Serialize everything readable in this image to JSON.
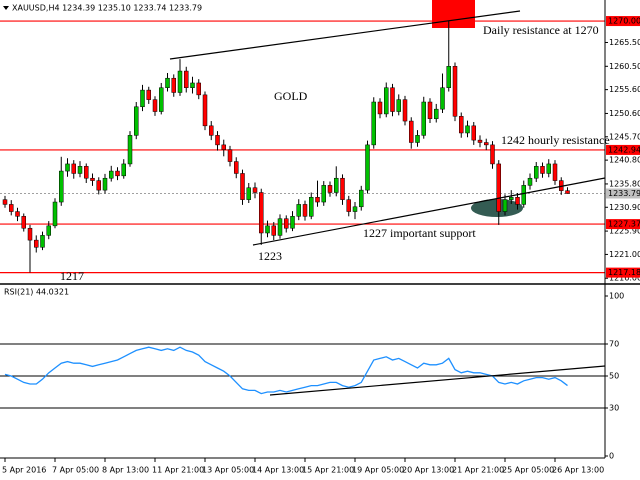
{
  "chart_data": [
    {
      "type": "candlestick",
      "title": "XAUUSD,H4  1234.39 1235.10 1233.74 1233.79",
      "categories": [
        "5 Apr 2016",
        null,
        null,
        null,
        null,
        null,
        null,
        null,
        "7 Apr 05:00",
        null,
        null,
        null,
        null,
        null,
        null,
        null,
        "8 Apr 13:00",
        null,
        null,
        null,
        null,
        null,
        null,
        null,
        "11 Apr 21:00",
        null,
        null,
        null,
        null,
        null,
        null,
        null,
        "13 Apr 05:00",
        null,
        null,
        null,
        null,
        null,
        null,
        null,
        "14 Apr 13:00",
        null,
        null,
        null,
        null,
        null,
        null,
        null,
        "15 Apr 21:00",
        null,
        null,
        null,
        null,
        null,
        null,
        null,
        "19 Apr 05:00",
        null,
        null,
        null,
        null,
        null,
        null,
        null,
        "20 Apr 13:00",
        null,
        null,
        null,
        null,
        null,
        null,
        null,
        "21 Apr 21:00",
        null,
        null,
        null,
        null,
        null,
        null,
        null,
        "25 Apr 05:00",
        null,
        null,
        null,
        null,
        null,
        null,
        null,
        "26 Apr 13:00",
        null,
        null
      ],
      "open": [
        1232.5,
        1231.5,
        1230.0,
        1229.0,
        1226.5,
        1224.0,
        1222.5,
        1225.0,
        1227.0,
        1232.0,
        1238.5,
        1240.0,
        1238.0,
        1239.5,
        1237.0,
        1236.5,
        1234.5,
        1237.0,
        1238.5,
        1237.5,
        1240.0,
        1246.0,
        1252.0,
        1255.5,
        1253.5,
        1251.0,
        1256.0,
        1258.0,
        1255.0,
        1259.5,
        1256.0,
        1257.0,
        1254.5,
        1248.0,
        1246.0,
        1244.0,
        1243.0,
        1240.5,
        1238.0,
        1232.5,
        1235.0,
        1234.0,
        1225.5,
        1227.0,
        1225.0,
        1228.5,
        1226.5,
        1229.0,
        1231.5,
        1229.0,
        1233.0,
        1232.0,
        1235.5,
        1234.0,
        1237.0,
        1232.5,
        1230.0,
        1231.0,
        1234.5,
        1244.0,
        1253.0,
        1250.5,
        1256.0,
        1251.0,
        1253.5,
        1249.0,
        1244.5,
        1246.0,
        1253.0,
        1249.5,
        1251.5,
        1256.0,
        1260.5,
        1250.0,
        1246.5,
        1248.0,
        1245.0,
        1244.5,
        1244.0,
        1240.0,
        1230.0,
        1232.5,
        1233.0,
        1231.5,
        1235.5,
        1237.0,
        1239.5,
        1238.0,
        1240.0,
        1236.5,
        1234.39
      ],
      "high": [
        1233.3,
        1232.4,
        1230.8,
        1229.6,
        1227.2,
        1225.0,
        1225.8,
        1228.0,
        1232.8,
        1241.5,
        1241.2,
        1240.8,
        1240.6,
        1240.1,
        1238.0,
        1237.2,
        1237.9,
        1239.6,
        1239.3,
        1241.0,
        1246.9,
        1253.0,
        1256.6,
        1256.2,
        1254.2,
        1257.0,
        1259.1,
        1258.8,
        1262.0,
        1260.4,
        1258.3,
        1257.8,
        1255.2,
        1249.0,
        1246.9,
        1245.1,
        1243.8,
        1241.4,
        1238.8,
        1236.0,
        1236.1,
        1234.8,
        1228.1,
        1227.8,
        1229.4,
        1229.2,
        1230.1,
        1232.6,
        1232.3,
        1234.0,
        1236.5,
        1236.4,
        1236.3,
        1239.5,
        1237.8,
        1233.3,
        1232.0,
        1235.4,
        1244.9,
        1254.0,
        1253.8,
        1257.1,
        1256.8,
        1254.6,
        1254.3,
        1249.8,
        1247.1,
        1254.1,
        1253.8,
        1252.6,
        1259.0,
        1270.0,
        1261.3,
        1250.8,
        1249.1,
        1248.8,
        1246.0,
        1245.3,
        1244.8,
        1240.8,
        1233.6,
        1234.5,
        1233.9,
        1236.5,
        1238.0,
        1240.4,
        1240.3,
        1241.0,
        1240.8,
        1237.2,
        1235.1
      ],
      "low": [
        1230.8,
        1229.2,
        1228.0,
        1225.8,
        1217.2,
        1221.4,
        1221.9,
        1224.2,
        1226.5,
        1231.2,
        1237.3,
        1236.9,
        1237.2,
        1236.0,
        1235.4,
        1233.6,
        1233.8,
        1236.3,
        1236.6,
        1236.9,
        1239.4,
        1245.2,
        1251.1,
        1252.6,
        1250.1,
        1250.4,
        1255.2,
        1254.1,
        1254.3,
        1255.0,
        1254.8,
        1253.6,
        1247.1,
        1245.0,
        1242.8,
        1241.6,
        1239.5,
        1237.0,
        1231.4,
        1231.8,
        1232.8,
        1223.0,
        1224.6,
        1224.0,
        1224.3,
        1225.6,
        1225.9,
        1228.2,
        1228.1,
        1228.4,
        1231.0,
        1231.2,
        1233.1,
        1233.2,
        1231.4,
        1229.0,
        1228.4,
        1230.2,
        1233.8,
        1243.2,
        1249.6,
        1249.8,
        1250.0,
        1250.2,
        1248.1,
        1243.2,
        1243.6,
        1245.3,
        1248.6,
        1248.7,
        1250.7,
        1255.2,
        1249.0,
        1245.5,
        1245.6,
        1244.0,
        1243.5,
        1242.9,
        1239.0,
        1227.2,
        1229.2,
        1231.6,
        1230.4,
        1230.8,
        1234.6,
        1236.2,
        1237.1,
        1237.2,
        1235.6,
        1233.5,
        1233.74
      ],
      "close": [
        1231.5,
        1230.0,
        1229.0,
        1226.5,
        1224.0,
        1222.5,
        1225.0,
        1227.0,
        1232.0,
        1238.5,
        1240.0,
        1238.0,
        1239.5,
        1237.0,
        1236.5,
        1234.5,
        1237.0,
        1238.5,
        1237.5,
        1240.0,
        1246.0,
        1252.0,
        1255.5,
        1253.5,
        1251.0,
        1256.0,
        1258.0,
        1255.0,
        1259.5,
        1256.0,
        1257.0,
        1254.5,
        1248.0,
        1246.0,
        1244.0,
        1243.0,
        1240.5,
        1238.0,
        1232.5,
        1235.0,
        1234.0,
        1225.5,
        1227.0,
        1225.0,
        1228.5,
        1226.5,
        1229.0,
        1231.5,
        1229.0,
        1233.0,
        1232.0,
        1235.5,
        1234.0,
        1237.0,
        1232.5,
        1230.0,
        1231.0,
        1234.5,
        1244.0,
        1253.0,
        1250.5,
        1256.0,
        1251.0,
        1253.5,
        1249.0,
        1244.5,
        1246.0,
        1253.0,
        1249.5,
        1251.5,
        1256.0,
        1260.5,
        1250.0,
        1246.5,
        1248.0,
        1245.0,
        1244.5,
        1244.0,
        1240.0,
        1230.0,
        1232.5,
        1233.0,
        1231.5,
        1235.5,
        1237.0,
        1239.5,
        1238.0,
        1240.0,
        1236.5,
        1234.39,
        1233.79
      ],
      "up_color": "#00c000",
      "down_color": "#ff0000",
      "level_color": "#ff0000",
      "ylim": [
        1215,
        1274
      ],
      "yticks": [
        {
          "value": 1216,
          "label": "1216.00"
        },
        {
          "value": 1221,
          "label": "1221.00"
        },
        {
          "value": 1225.9,
          "label": "1225.90"
        },
        {
          "value": 1230.9,
          "label": "1230.90"
        },
        {
          "value": 1235.8,
          "label": "1235.80"
        },
        {
          "value": 1240.8,
          "label": "1240.80"
        },
        {
          "value": 1245.7,
          "label": "1245.70"
        },
        {
          "value": 1250.6,
          "label": "1250.60"
        },
        {
          "value": 1255.6,
          "label": "1255.60"
        },
        {
          "value": 1260.5,
          "label": "1260.50"
        },
        {
          "value": 1265.5,
          "label": "1265.50"
        }
      ],
      "levels": [
        {
          "value": 1270,
          "label": "1270.00"
        },
        {
          "value": 1242.94,
          "label": "1242.94"
        },
        {
          "value": 1227.37,
          "label": "1227.37"
        },
        {
          "value": 1217.18,
          "label": "1217.18"
        }
      ],
      "current_price": 1233.79,
      "annotations": [
        {
          "text": "Daily resistance at 1270"
        },
        {
          "text": "GOLD"
        },
        {
          "text": "1242 hourly resistance"
        },
        {
          "text": "1227 important support"
        },
        {
          "text": "1223"
        },
        {
          "text": "1217"
        }
      ]
    },
    {
      "type": "line",
      "title": "RSI(21) 44.0321",
      "values": [
        51,
        50,
        48,
        46,
        45,
        45,
        48,
        52,
        55,
        58,
        59,
        58,
        58,
        57,
        56,
        57,
        58,
        59,
        60,
        62,
        64,
        66,
        67,
        68,
        67,
        66,
        67,
        66,
        68,
        66,
        65,
        63,
        59,
        57,
        55,
        53,
        50,
        46,
        42,
        41,
        41,
        39,
        40,
        40,
        41,
        40,
        41,
        42,
        43,
        44,
        44,
        45,
        46,
        46,
        44,
        43,
        44,
        46,
        53,
        60,
        61,
        62,
        60,
        61,
        59,
        57,
        55,
        58,
        57,
        57,
        58,
        61,
        54,
        52,
        53,
        52,
        52,
        51,
        50,
        46,
        45,
        46,
        45,
        47,
        48,
        49,
        49,
        48,
        49,
        47,
        44.0321
      ],
      "color": "#1e90ff",
      "ylim": [
        0,
        100
      ],
      "yticks": [
        0,
        30,
        50,
        70,
        100
      ],
      "levels": [
        30,
        50,
        70
      ]
    }
  ]
}
